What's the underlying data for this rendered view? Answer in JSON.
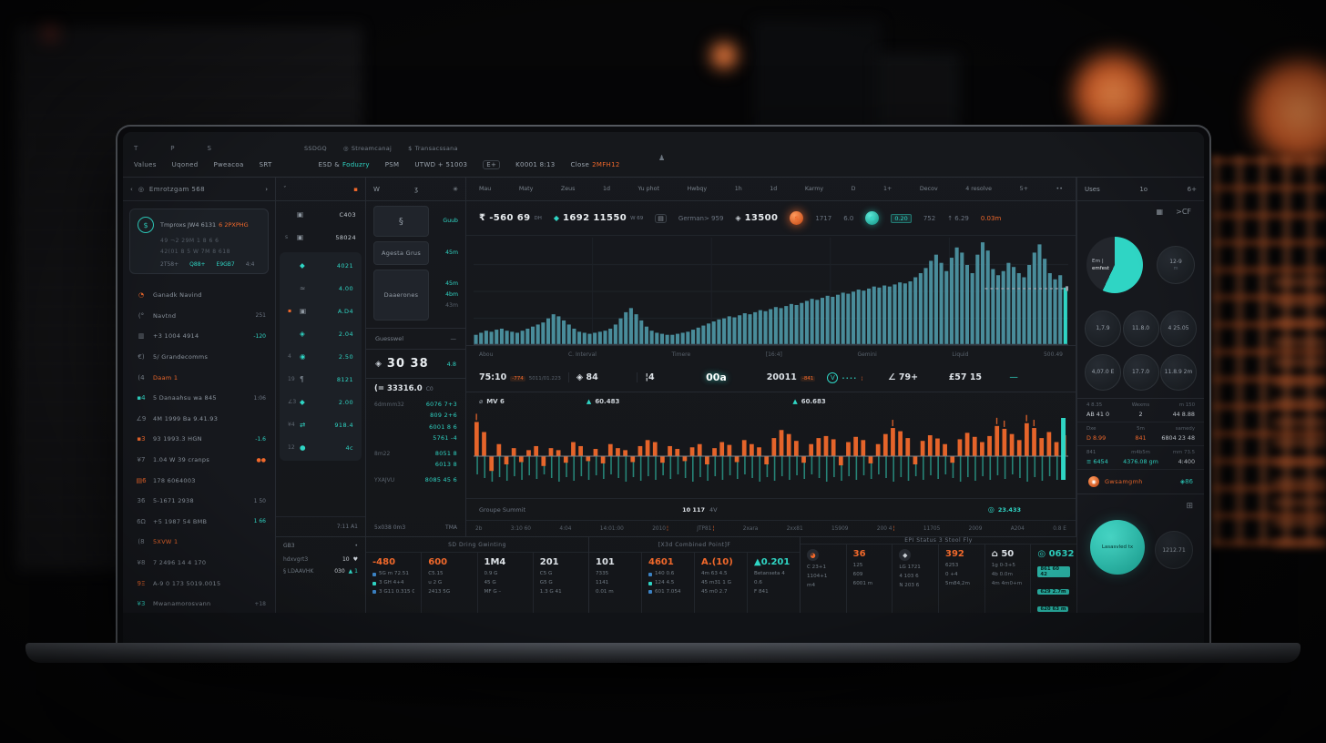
{
  "colors": {
    "teal": "#2fd5c4",
    "orange": "#f0682b",
    "panel": "#1c2026",
    "border": "#262a31"
  },
  "topbar": {
    "glyphs": [
      "T",
      "P",
      "S"
    ],
    "center": [
      {
        "i": "",
        "t": "SSDGQ"
      },
      {
        "i": "◎",
        "t": "Streamcanaj"
      },
      {
        "i": "$",
        "t": "Transacssana"
      }
    ],
    "lone_icon": "♟",
    "nav": [
      {
        "t": "Values"
      },
      {
        "t": "Uqoned"
      },
      {
        "t": "Pweacoa"
      },
      {
        "t": "SRT"
      },
      {
        "t": "ESD &",
        "a": "Foduzry",
        "ac": "#2fd5c4",
        "gap": true
      },
      {
        "t": "PSM"
      },
      {
        "t": "UTWD + 51003"
      },
      {
        "t": "E+",
        "chip": true
      },
      {
        "t": "K0001 8:13"
      },
      {
        "t": "Close",
        "a": "2MFH12",
        "ac": "#f0682b"
      }
    ]
  },
  "sidebar": {
    "header": {
      "back": "‹",
      "icon": "◎",
      "title": "Emrotzgam 568",
      "more": "›"
    },
    "account": {
      "avatar": "$",
      "line1": "Tmproxs JW4 6131",
      "line1_accent": "6 2PXPHG",
      "line2": "49  ¬2   29M 1 8 6 6",
      "line3": "42(01 8 5   W 7M 8 618",
      "footer": [
        {
          "t": "2T58+",
          "c": ""
        },
        {
          "t": "Q88+",
          "c": "#2fd5c4"
        },
        {
          "t": "E9GB7",
          "c": "#2fd5c4"
        },
        {
          "t": "4:4",
          "c": ""
        }
      ]
    },
    "items": [
      {
        "i": "◔",
        "ic": "#f0682b",
        "t": "Ganadk Navind",
        "b": "",
        "bc": ""
      },
      {
        "i": "(°",
        "ic": "",
        "t": "Navtnd",
        "b": "251",
        "bc": ""
      },
      {
        "i": "▥",
        "ic": "",
        "t": "+3 1004 4914",
        "b": "-120",
        "bc": "#2fd5c4"
      },
      {
        "i": "€)",
        "ic": "",
        "t": "5/ Grandecomms",
        "b": "",
        "bc": ""
      },
      {
        "i": "(4",
        "ic": "",
        "t": "Daam  1",
        "tc": "#f0682b",
        "b": "",
        "bc": ""
      },
      {
        "i": "▪4",
        "ic": "#2fd5c4",
        "t": "5 Danaahsu wa 845",
        "b": "1:06",
        "bc": ""
      },
      {
        "i": "∠9",
        "ic": "",
        "t": "4M 1999 Ba 9.41.93",
        "b": "",
        "bc": ""
      },
      {
        "i": "▪3",
        "ic": "#f0682b",
        "t": "93 1993.3 HGN",
        "b": "-1.6",
        "bc": "#2fd5c4"
      },
      {
        "i": "¥7",
        "ic": "",
        "t": "1.04 W 39 cranps",
        "b": "●●",
        "bc": "#f0682b"
      },
      {
        "i": "▤6",
        "ic": "#f0682b",
        "t": "178 6064003",
        "b": "",
        "bc": ""
      },
      {
        "i": "36",
        "ic": "",
        "t": "5-1671 2938",
        "b": "1 50",
        "bc": ""
      },
      {
        "i": "6Ω",
        "ic": "",
        "t": "+5 1987 54 BMB",
        "b": "1 66",
        "bc": "#2fd5c4"
      },
      {
        "i": "(8",
        "ic": "",
        "t": "5XVW  1",
        "tc": "#f0682b",
        "b": "",
        "bc": ""
      },
      {
        "i": "¥8",
        "ic": "",
        "t": "7 2496 14 4 170",
        "b": "",
        "bc": ""
      },
      {
        "i": "9Ξ",
        "ic": "#f0682b",
        "t": "A-9 0 173 5019.0015",
        "b": "",
        "bc": ""
      },
      {
        "i": "¥3",
        "ic": "#2fd5c4",
        "t": "Mwanamorosvann",
        "b": "+18",
        "bc": ""
      }
    ]
  },
  "watchlist": {
    "head_l": "ˇ",
    "head_r": "▪",
    "top_items": [
      {
        "p": "",
        "i": "▣",
        "ic": "#8f98a1",
        "v": "C403"
      },
      {
        "p": "s",
        "i": "▣",
        "ic": "#8f98a1",
        "v": "58024"
      }
    ],
    "items": [
      {
        "p": "",
        "i": "◆",
        "ic": "#2fd5c4",
        "v": "4021"
      },
      {
        "p": "",
        "i": "≈",
        "ic": "#79828c",
        "v": "4.00"
      },
      {
        "p": "▪",
        "pc": "#f0682b",
        "i": "▣",
        "ic": "#8f98a1",
        "v": "A.D4"
      },
      {
        "p": "",
        "i": "◈",
        "ic": "#2fd5c4",
        "v": "2.04"
      },
      {
        "p": "4",
        "i": "◉",
        "ic": "#2fd5c4",
        "v": "2.50"
      },
      {
        "p": "19",
        "i": "¶",
        "ic": "#79828c",
        "v": "8121"
      },
      {
        "p": "∠3",
        "i": "◆",
        "ic": "#2fd5c4",
        "v": "2.00"
      },
      {
        "p": "¥4",
        "i": "⇄",
        "ic": "#2fd5c4",
        "v": "918.4"
      },
      {
        "p": "12",
        "i": "●",
        "ic": "#2fd5c4",
        "v": "4c"
      }
    ],
    "footer": "7:11 A1"
  },
  "trade": {
    "head": {
      "l": "W",
      "m": "ʒ",
      "r": "✳"
    },
    "box1": {
      "i": "§",
      "v": "Guub"
    },
    "button": {
      "t": "Agesta Grus",
      "v": "45m"
    },
    "box2": {
      "t": "Daaerones",
      "v1": "45m",
      "v2": "4bm",
      "dim": "43m"
    },
    "divider": {
      "t": "Guesswel",
      "v": "—"
    },
    "big": {
      "i": "◈",
      "t": "30 38",
      "v": "4.8"
    },
    "book": {
      "title": "(= 33316.0",
      "unit": "C0",
      "groups": [
        {
          "l": "6dmmm32",
          "rows": [
            "6076 7+3",
            "809 2+6",
            "6001 8 6",
            "5761 -4"
          ]
        },
        {
          "l": "8m22",
          "rows": [
            "8051 8",
            "6013 8"
          ]
        },
        {
          "l": "YXAJVU",
          "rows": [
            "8085 45 6"
          ]
        }
      ],
      "fl": "5x038 0m3",
      "fr": "TMA"
    }
  },
  "chart": {
    "toolbar": [
      "Mau",
      "Maty",
      "Zeus",
      "1d",
      "Yu phot",
      "Hwbqy",
      "1h",
      "1d",
      "Karmy",
      "D",
      "1+",
      "Decov",
      "4 resolve",
      "5+",
      "••"
    ],
    "chips": [
      {
        "t": "₹ -560 69",
        "s": "DH",
        "big": true
      },
      {
        "i": "◆",
        "ic": "#2fd5c4",
        "t": "1692 11550",
        "s": "W 69",
        "big": true
      },
      {
        "i": "▤",
        "boxed": true
      },
      {
        "t": "German> 959",
        "dim": true
      },
      {
        "i": "◈",
        "ic": "#c8ced4",
        "t": "13500",
        "big": true
      },
      {
        "i": "S",
        "glow": "orange"
      },
      {
        "t": "1717",
        "dim": true
      },
      {
        "t": "6.0",
        "dim": true
      },
      {
        "i": "G",
        "glow": "teal"
      },
      {
        "t": "0.20",
        "chip": true
      },
      {
        "t": "752",
        "dim": true
      },
      {
        "t": "↑ 6.29",
        "dim": true
      },
      {
        "t": "0.03m",
        "c": "#f0682b"
      }
    ],
    "stats_labels": [
      "Abou",
      "C. Interval",
      "Timere",
      "[16:4]",
      "Gemini",
      "Liquid",
      "500.49"
    ],
    "stats_cells": [
      {
        "m": "75:10",
        "s": "5011/01.223",
        "chip": "-774"
      },
      {
        "m": "◈ 84"
      },
      {
        "m": "¦4"
      },
      {
        "m": "00a",
        "strong": true
      },
      {
        "m": "20011",
        "chip": "-841"
      },
      {
        "m": "V",
        "tic": true,
        "s": "••••",
        "s2": "¦"
      },
      {
        "m": "∠ 79+"
      },
      {
        "m": "£57 15"
      },
      {
        "m": "—",
        "tealText": true
      }
    ],
    "c2head": [
      {
        "i": "⌀",
        "ic": "#9aa3ad",
        "t": "MV 6"
      },
      {
        "i": "▲",
        "ic": "#2fd5c4",
        "t": "60.483"
      },
      {
        "i": "▲",
        "ic": "#2fd5c4",
        "t": "60.683"
      }
    ],
    "footer": {
      "l": "Groupe Summit",
      "m1": "10 117",
      "m2": "4V",
      "ri": "◎",
      "r": "23.433"
    },
    "axis": [
      {
        "t": "2b"
      },
      {
        "t": "3:10 60"
      },
      {
        "t": "4:04"
      },
      {
        "t": "14:01:00"
      },
      {
        "t": "2010",
        "k": true
      },
      {
        "t": "JTP81",
        "k": true
      },
      {
        "t": "2xara"
      },
      {
        "t": "2xx81"
      },
      {
        "t": "15909"
      },
      {
        "t": "200 4",
        "k": true
      },
      {
        "t": "11705"
      },
      {
        "t": "2009"
      },
      {
        "t": "A204"
      },
      {
        "t": "0.8 E"
      }
    ]
  },
  "chart_data": [
    {
      "type": "bar",
      "name": "price-histogram",
      "title": "1692 11550",
      "color": "#4f99a8",
      "highlight_color": "#2fd5c4",
      "ylim": [
        0,
        100
      ],
      "crosshair_value": 55,
      "grid": true,
      "legend_position": "none",
      "xlabel": "",
      "ylabel": "",
      "values": [
        10,
        12,
        14,
        13,
        15,
        16,
        14,
        13,
        12,
        14,
        16,
        18,
        20,
        22,
        26,
        30,
        28,
        24,
        20,
        16,
        13,
        12,
        11,
        12,
        13,
        14,
        16,
        20,
        26,
        32,
        36,
        30,
        24,
        18,
        14,
        12,
        11,
        10,
        10,
        11,
        12,
        13,
        15,
        17,
        19,
        21,
        23,
        25,
        26,
        28,
        27,
        29,
        31,
        30,
        32,
        34,
        33,
        35,
        37,
        36,
        38,
        40,
        39,
        41,
        43,
        45,
        44,
        46,
        48,
        47,
        49,
        51,
        50,
        52,
        54,
        53,
        55,
        57,
        56,
        58,
        57,
        59,
        61,
        60,
        62,
        66,
        70,
        75,
        82,
        88,
        80,
        72,
        85,
        95,
        90,
        78,
        70,
        88,
        100,
        92,
        74,
        68,
        72,
        80,
        76,
        70,
        66,
        78,
        90,
        98,
        84,
        70,
        64,
        68,
        56
      ]
    },
    {
      "type": "bar",
      "name": "volume-delta",
      "title": "MV 6 / 60.483 / 60.683",
      "color": "#f0682b",
      "comb_color": "#2aa08f",
      "end_bar_color": "#2fd5c4",
      "ylim": [
        -50,
        95
      ],
      "comb": {
        "base": 20,
        "step": 13,
        "mod": 9
      },
      "grid": false,
      "legend_position": "none",
      "xlabel": "",
      "ylabel": "",
      "values": [
        85,
        60,
        -45,
        30,
        -25,
        20,
        -18,
        15,
        25,
        -30,
        20,
        15,
        -20,
        35,
        25,
        -15,
        18,
        -22,
        30,
        20,
        15,
        -18,
        25,
        40,
        35,
        -20,
        25,
        18,
        -15,
        22,
        30,
        -25,
        20,
        35,
        28,
        -18,
        40,
        30,
        22,
        -25,
        45,
        65,
        55,
        38,
        -20,
        30,
        45,
        50,
        42,
        -28,
        35,
        48,
        40,
        -22,
        30,
        55,
        70,
        62,
        45,
        -25,
        38,
        52,
        44,
        30,
        -20,
        42,
        58,
        48,
        35,
        50,
        75,
        68,
        55,
        40,
        82,
        70,
        45,
        60,
        35,
        52
      ]
    }
  ],
  "gb3": {
    "title": "GB3",
    "dot": "•",
    "rows": [
      {
        "l": "hdxvgrt3",
        "v": "10",
        "vi": "♥",
        "vic": "#c7cdd4"
      },
      {
        "l": "§ LDAAVHK",
        "v": "030",
        "vi": "▲ 1",
        "vic": "#2fd5c4"
      }
    ]
  },
  "panels": [
    {
      "title": "SD Dring Gwinting",
      "cols": [
        {
          "big": "-480",
          "bc": "#f0682b",
          "bullets": true,
          "rows": [
            "5G m 72.51",
            "3 GH 4+4",
            "3 G11 0.315 G"
          ]
        },
        {
          "big": "600",
          "bc": "#f0682b",
          "rows": [
            "C5.15",
            "u 2 G",
            "2413 5G"
          ]
        },
        {
          "big": "1M4",
          "rows": [
            "0.9 G",
            "45 G",
            "MF G –"
          ]
        },
        {
          "big": "201",
          "rows": [
            "C5 G",
            "G5 G",
            "1.3 G 41"
          ]
        }
      ]
    },
    {
      "title": "[X3d Combined Point]F",
      "cols": [
        {
          "big": "101",
          "rows": [
            "7335",
            "1141",
            "0.01 m"
          ]
        },
        {
          "big": "4601",
          "bc": "#f0682b",
          "bullets": true,
          "rows": [
            "140  0.6",
            "124  4.5",
            "601 7.054"
          ]
        },
        {
          "big": "A.(10)",
          "bc": "#f0682b",
          "rows": [
            "4m 63  4.5",
            "45 m31 1 G",
            "45 m0 2.7"
          ]
        },
        {
          "big": "▲0.201",
          "bc": "#2fd5c4",
          "rows": [
            "Betanseta 4",
            "0.6",
            "F 841"
          ]
        }
      ]
    },
    {
      "title": "EPI Status 3 Stool Fly",
      "cols": [
        {
          "icon": "◕",
          "icc": "#f0682b",
          "rows": [
            "C 23+1",
            "1104+1",
            "m4"
          ]
        },
        {
          "big": "36",
          "bc": "#f0682b",
          "rows": [
            "125",
            "609",
            "6001 m"
          ]
        },
        {
          "icon": "◆",
          "icc": "#c8ced4",
          "rows": [
            "LG  1721",
            "4  103  6",
            "N  203  6"
          ]
        },
        {
          "big": "392",
          "bc": "#f0682b",
          "rows": [
            "6253",
            "0 +4",
            "5m84,2m"
          ]
        },
        {
          "big": "⌂ 50",
          "rows": [
            "1g  0-3+5",
            "4b  0.0m",
            "4m  4m0+m"
          ]
        },
        {
          "big": "◎ 0632",
          "bc": "#2fd5c4",
          "chips": true,
          "rows": [
            "861 60 42",
            "629 2.7m",
            "620 63 m"
          ]
        }
      ]
    }
  ],
  "right": {
    "header": {
      "l": "Uses",
      "m": "1o",
      "r": "6+"
    },
    "icons": {
      "grid": "▦",
      "label": ">CF"
    },
    "donut": {
      "pct": 57,
      "label1": "Ern |",
      "label2": "emfest"
    },
    "bubble_top": {
      "t1": "12-9",
      "t2": "m"
    },
    "bubbles": [
      [
        "1,7.9",
        "11.8.0",
        "4 25.05"
      ],
      [
        "4,07.0 E",
        "17.7.0",
        "11.8.9 2m"
      ]
    ],
    "table": [
      [
        {
          "t": "4 8.35",
          "b": "AB 41 0",
          "bc": ""
        },
        {
          "t": "Wexms",
          "b": "2",
          "bc": ""
        },
        {
          "t": "m 150",
          "b": "44 8.88",
          "bc": ""
        }
      ],
      [
        {
          "t": "Dxe",
          "b": "D 8.99",
          "bc": "#f0682b"
        },
        {
          "t": "5m",
          "b": "841",
          "bc": "#f0682b"
        },
        {
          "t": "samedy",
          "b": "6804 23 48",
          "bc": ""
        }
      ],
      [
        {
          "t": "841",
          "b": "≡ 6454",
          "bc": "#2fd5c4"
        },
        {
          "t": "m4b5m",
          "b": "4376.08 gm",
          "bc": "#2fd5c4"
        },
        {
          "t": "mm 73.5",
          "b": "4:400",
          "bc": ""
        }
      ]
    ],
    "orange_row": {
      "i": "◉",
      "t": "Gwsamgmh",
      "r": "◈86"
    },
    "bottom": {
      "icon": "⊞",
      "big": "Lasasvled tx",
      "small": "1212.71"
    }
  }
}
